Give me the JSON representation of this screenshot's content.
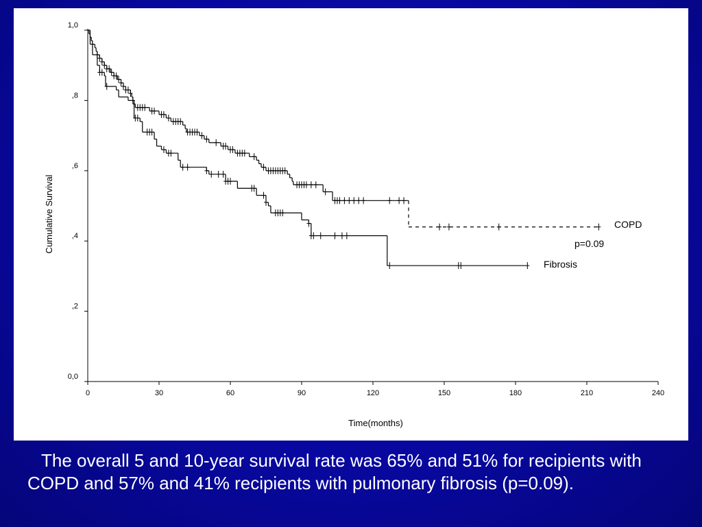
{
  "slide": {
    "caption": "The overall 5 and 10-year survival rate was 65% and 51% for recipients with COPD and 57% and 41% recipients with pulmonary fibrosis (p=0.09)."
  },
  "colors": {
    "background": "#0a0a8c",
    "panel": "#ffffff",
    "line": "#000000",
    "caption_text": "#ffffff"
  },
  "chart_data": {
    "type": "line",
    "subtype": "kaplan-meier",
    "xlabel": "Time(months)",
    "ylabel": "Cumulative Survival",
    "xlim": [
      0,
      240
    ],
    "ylim": [
      0,
      1
    ],
    "xticks": [
      0,
      30,
      60,
      90,
      120,
      150,
      180,
      210,
      240
    ],
    "xtick_labels": [
      "0",
      "30",
      "60",
      "90",
      "120",
      "150",
      "180",
      "210",
      "240"
    ],
    "yticks": [
      0,
      0.2,
      0.4,
      0.6,
      0.8,
      1.0
    ],
    "ytick_labels": [
      "0,0",
      ",2",
      ",4",
      ",6",
      ",8",
      "1,0"
    ],
    "grid": false,
    "annotations": [
      {
        "text": "p=0.09"
      }
    ],
    "series": [
      {
        "name": "COPD",
        "line_style": "solid-then-dashed",
        "dash_after_x": 104,
        "steps": [
          [
            0,
            1.0
          ],
          [
            0.5,
            0.99
          ],
          [
            1,
            0.98
          ],
          [
            1.5,
            0.97
          ],
          [
            2,
            0.96
          ],
          [
            3,
            0.95
          ],
          [
            3.5,
            0.94
          ],
          [
            4,
            0.93
          ],
          [
            5,
            0.92
          ],
          [
            6,
            0.91
          ],
          [
            7,
            0.9
          ],
          [
            8,
            0.89
          ],
          [
            9.5,
            0.88
          ],
          [
            11,
            0.87
          ],
          [
            12.5,
            0.86
          ],
          [
            14,
            0.85
          ],
          [
            15,
            0.84
          ],
          [
            16,
            0.83
          ],
          [
            18,
            0.82
          ],
          [
            18.5,
            0.81
          ],
          [
            19,
            0.8
          ],
          [
            19.5,
            0.79
          ],
          [
            20,
            0.78
          ],
          [
            26,
            0.77
          ],
          [
            30,
            0.76
          ],
          [
            33,
            0.75
          ],
          [
            35,
            0.74
          ],
          [
            40,
            0.73
          ],
          [
            41,
            0.72
          ],
          [
            41.5,
            0.71
          ],
          [
            47,
            0.7
          ],
          [
            49,
            0.69
          ],
          [
            51,
            0.68
          ],
          [
            56,
            0.67
          ],
          [
            59,
            0.66
          ],
          [
            62,
            0.65
          ],
          [
            68,
            0.64
          ],
          [
            71,
            0.63
          ],
          [
            72,
            0.62
          ],
          [
            73,
            0.61
          ],
          [
            75,
            0.6
          ],
          [
            84,
            0.59
          ],
          [
            85,
            0.58
          ],
          [
            86,
            0.57
          ],
          [
            86.5,
            0.56
          ],
          [
            99,
            0.54
          ],
          [
            103,
            0.515
          ],
          [
            135,
            0.44
          ]
        ],
        "end_x": 215,
        "censor_x": [
          2,
          4,
          5,
          6,
          7,
          8,
          9,
          10,
          11,
          12,
          13,
          14,
          15,
          16,
          17,
          18,
          19,
          21,
          22,
          23,
          24,
          27,
          28,
          31,
          32,
          34,
          36,
          37,
          38,
          39,
          42,
          43,
          44,
          45,
          46,
          48,
          50,
          54,
          57,
          58,
          60,
          61,
          63,
          64,
          65,
          66,
          70,
          74,
          76,
          77,
          78,
          79,
          80,
          81,
          82,
          83,
          88,
          89,
          90,
          91,
          92,
          94,
          96,
          100,
          104,
          105,
          106,
          108,
          110,
          112,
          114,
          116,
          127,
          131,
          133,
          148,
          152,
          173,
          215
        ]
      },
      {
        "name": "Fibrosis",
        "line_style": "solid",
        "steps": [
          [
            0,
            1.0
          ],
          [
            1,
            0.96
          ],
          [
            2,
            0.93
          ],
          [
            4,
            0.9
          ],
          [
            5,
            0.88
          ],
          [
            7,
            0.87
          ],
          [
            7.5,
            0.84
          ],
          [
            12,
            0.83
          ],
          [
            13,
            0.81
          ],
          [
            17,
            0.8
          ],
          [
            19,
            0.79
          ],
          [
            19.5,
            0.75
          ],
          [
            22,
            0.74
          ],
          [
            23,
            0.71
          ],
          [
            28,
            0.69
          ],
          [
            29,
            0.67
          ],
          [
            31,
            0.66
          ],
          [
            33,
            0.65
          ],
          [
            38,
            0.63
          ],
          [
            39,
            0.61
          ],
          [
            50,
            0.6
          ],
          [
            51,
            0.59
          ],
          [
            58,
            0.57
          ],
          [
            63,
            0.55
          ],
          [
            71,
            0.53
          ],
          [
            75,
            0.51
          ],
          [
            76,
            0.5
          ],
          [
            77,
            0.48
          ],
          [
            90,
            0.46
          ],
          [
            93,
            0.45
          ],
          [
            94,
            0.415
          ],
          [
            126,
            0.33
          ]
        ],
        "end_x": 185,
        "censor_x": [
          5,
          6,
          8,
          20,
          21,
          25,
          26,
          27,
          32,
          34,
          35,
          40,
          42,
          50,
          52,
          55,
          57,
          58,
          59,
          60,
          69,
          70,
          74,
          75,
          79,
          80,
          81,
          82,
          93,
          94,
          95,
          98,
          104,
          107,
          109,
          127,
          156,
          157,
          185
        ]
      }
    ]
  }
}
